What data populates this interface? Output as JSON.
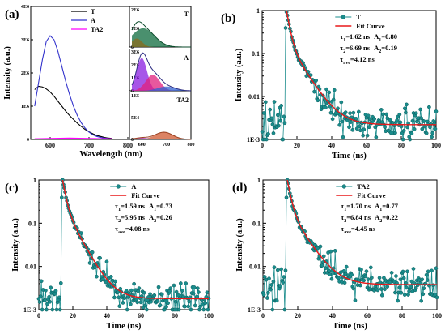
{
  "chart_data": [
    {
      "panel": "(a)",
      "type": "line",
      "xlabel": "Wavelength (nm)",
      "ylabel": "Intensity (a.u.)",
      "xlim": [
        550,
        800
      ],
      "ylim": [
        0,
        4000000
      ],
      "x_ticks": [
        600,
        700,
        800
      ],
      "y_ticks": [
        "0",
        "1E6",
        "2E6",
        "3E6",
        "4E6"
      ],
      "legend": "top-right",
      "series": [
        {
          "name": "T",
          "color": "#000000",
          "x": [
            560,
            570,
            580,
            590,
            600,
            610,
            620,
            630,
            640,
            650,
            660,
            670,
            680,
            690,
            700,
            710,
            720,
            730,
            740,
            750,
            760
          ],
          "y": [
            1500000,
            1600000,
            1580000,
            1520000,
            1430000,
            1300000,
            1150000,
            1000000,
            850000,
            720000,
            600000,
            490000,
            390000,
            300000,
            230000,
            170000,
            120000,
            90000,
            60000,
            40000,
            30000
          ]
        },
        {
          "name": "A",
          "color": "#3333cc",
          "x": [
            560,
            570,
            580,
            590,
            600,
            610,
            620,
            630,
            640,
            650,
            660,
            670,
            680,
            690,
            700,
            710,
            720,
            730,
            740,
            750,
            760
          ],
          "y": [
            1000000,
            1700000,
            2400000,
            2950000,
            3120000,
            3000000,
            2650000,
            2200000,
            1750000,
            1350000,
            1000000,
            720000,
            500000,
            340000,
            220000,
            140000,
            90000,
            60000,
            40000,
            25000,
            15000
          ]
        },
        {
          "name": "TA2",
          "color": "#ff00ff",
          "x": [
            560,
            600,
            650,
            700,
            760
          ],
          "y": [
            20000,
            30000,
            40000,
            30000,
            20000
          ]
        }
      ],
      "insets": [
        {
          "tag": "T",
          "x_ticks": [],
          "y_ticks": [
            "2E6",
            "1E6",
            "0"
          ]
        },
        {
          "tag": "A",
          "x_ticks": [],
          "y_ticks": [
            "3E6",
            "2E6",
            "1E6",
            "0"
          ]
        },
        {
          "tag": "TA2",
          "x_ticks": [
            "600",
            "700",
            "800"
          ],
          "y_ticks": [
            "1E5",
            "5E4",
            "0"
          ]
        }
      ]
    },
    {
      "panel": "(b)",
      "type": "scatter",
      "xlabel": "Time (ns)",
      "ylabel": "Intensity (a.u.)",
      "xlim": [
        0,
        100
      ],
      "ylim": [
        0.001,
        1
      ],
      "yscale": "log",
      "x_ticks": [
        0,
        20,
        40,
        60,
        80,
        100
      ],
      "y_ticks": [
        "1E-3",
        "0.01",
        "0.1",
        "1"
      ],
      "series": [
        {
          "name": "T",
          "color": "#1a8c8c",
          "style": "markers+line"
        },
        {
          "name": "Fit Curve",
          "color": "#e8191a",
          "style": "line"
        }
      ],
      "fit": {
        "t0": 14,
        "tau1": 1.62,
        "a1": 0.8,
        "tau2": 6.69,
        "a2": 0.19,
        "floor": 0.0022
      },
      "annotations": {
        "tau1": "1.62 ns",
        "A1": "0.80",
        "tau2": "6.69 ns",
        "A2": "0.19",
        "tau_ave": "4.12 ns"
      }
    },
    {
      "panel": "(c)",
      "type": "scatter",
      "xlabel": "Time (ns)",
      "ylabel": "Intensity (a.u.)",
      "xlim": [
        0,
        100
      ],
      "ylim": [
        0.001,
        1
      ],
      "yscale": "log",
      "x_ticks": [
        0,
        20,
        40,
        60,
        80,
        100
      ],
      "y_ticks": [
        "1E-3",
        "0.01",
        "0.1",
        "1"
      ],
      "series": [
        {
          "name": "A",
          "color": "#1a8c8c",
          "style": "markers+line"
        },
        {
          "name": "Fit Curve",
          "color": "#e8191a",
          "style": "line"
        }
      ],
      "fit": {
        "t0": 14,
        "tau1": 1.59,
        "a1": 0.73,
        "tau2": 5.95,
        "a2": 0.26,
        "floor": 0.0018
      },
      "annotations": {
        "tau1": "1.59 ns",
        "A1": "0.73",
        "tau2": "5.95 ns",
        "A2": "0.26",
        "tau_ave": "4.08 ns"
      }
    },
    {
      "panel": "(d)",
      "type": "scatter",
      "xlabel": "Time (ns)",
      "ylabel": "Intensity (a.u.)",
      "xlim": [
        0,
        100
      ],
      "ylim": [
        0.001,
        1
      ],
      "yscale": "log",
      "x_ticks": [
        0,
        20,
        40,
        60,
        80,
        100
      ],
      "y_ticks": [
        "1E-3",
        "0.01",
        "0.1",
        "1"
      ],
      "series": [
        {
          "name": "TA2",
          "color": "#1a8c8c",
          "style": "markers+line"
        },
        {
          "name": "Fit Curve",
          "color": "#e8191a",
          "style": "line"
        }
      ],
      "fit": {
        "t0": 14,
        "tau1": 1.7,
        "a1": 0.77,
        "tau2": 6.84,
        "a2": 0.22,
        "floor": 0.0038
      },
      "annotations": {
        "tau1": "1.70 ns",
        "A1": "0.77",
        "tau2": "6.84 ns",
        "A2": "0.22",
        "tau_ave": "4.45 ns"
      }
    }
  ]
}
